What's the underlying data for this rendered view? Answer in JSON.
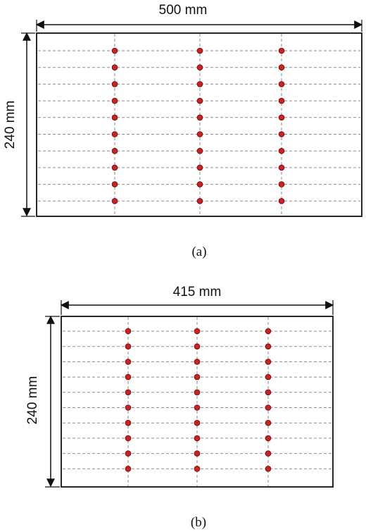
{
  "figures": [
    {
      "id": "a",
      "caption": "(a)",
      "width_label": "500 mm",
      "height_label": "240 mm",
      "columns": 3,
      "rows": 10
    },
    {
      "id": "b",
      "caption": "(b)",
      "width_label": "415 mm",
      "height_label": "240 mm",
      "columns": 3,
      "rows": 10
    }
  ],
  "colors": {
    "line": "#111111",
    "grid": "#8a8a8a",
    "dot_fill": "#cc2222",
    "dot_stroke": "#7a1010"
  }
}
